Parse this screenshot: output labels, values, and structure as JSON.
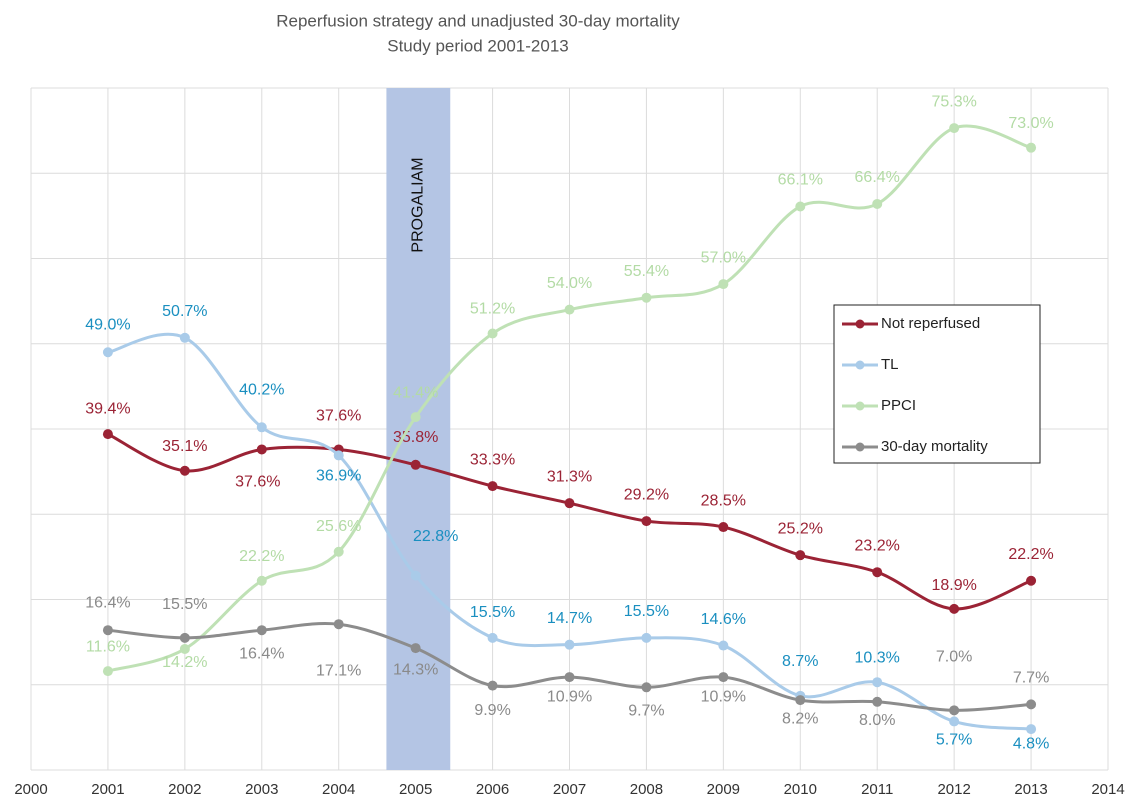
{
  "chart_data": {
    "type": "line",
    "title": "Reperfusion strategy and unadjusted 30-day mortality",
    "subtitle": "Study period 2001-2013",
    "x": [
      2001,
      2002,
      2003,
      2004,
      2005,
      2006,
      2007,
      2008,
      2009,
      2010,
      2011,
      2012,
      2013
    ],
    "xlim": [
      2000,
      2014
    ],
    "xticks": [
      2000,
      2001,
      2002,
      2003,
      2004,
      2005,
      2006,
      2007,
      2008,
      2009,
      2010,
      2011,
      2012,
      2013,
      2014
    ],
    "ylim": [
      0,
      80
    ],
    "yticks": [
      0,
      10,
      20,
      30,
      40,
      50,
      60,
      70,
      80
    ],
    "grid": true,
    "legend": "right",
    "annotation": {
      "text": "PROGALIAM",
      "color": "#b4c5e4",
      "x": [
        2004.62,
        2005.45
      ]
    },
    "series": [
      {
        "name": "Not reperfused",
        "color": "#9b2335",
        "label_color": "#9b2335",
        "values": [
          39.4,
          35.1,
          37.6,
          37.6,
          35.8,
          33.3,
          31.3,
          29.2,
          28.5,
          25.2,
          23.2,
          18.9,
          22.2
        ],
        "value_labels": [
          "39.4%",
          "35.1%",
          "37.6%",
          "37.6%",
          "35.8%",
          "33.3%",
          "31.3%",
          "29.2%",
          "28.5%",
          "25.2%",
          "23.2%",
          "18.9%",
          "22.2%"
        ]
      },
      {
        "name": "TL",
        "color": "#a9cbe9",
        "label_color": "#1a8fc0",
        "values": [
          49.0,
          50.7,
          40.2,
          36.9,
          22.8,
          15.5,
          14.7,
          15.5,
          14.6,
          8.7,
          10.3,
          5.7,
          4.8
        ],
        "value_labels": [
          "49.0%",
          "50.7%",
          "40.2%",
          "36.9%",
          "22.8%",
          "15.5%",
          "14.7%",
          "15.5%",
          "14.6%",
          "8.7%",
          "10.3%",
          "5.7%",
          "4.8%"
        ]
      },
      {
        "name": "PPCI",
        "color": "#bfe1b5",
        "label_color": "#b3dba5",
        "values": [
          11.6,
          14.2,
          22.2,
          25.6,
          41.4,
          51.2,
          54.0,
          55.4,
          57.0,
          66.1,
          66.4,
          75.3,
          73.0
        ],
        "value_labels": [
          "11.6%",
          "14.2%",
          "22.2%",
          "25.6%",
          "41.4%",
          "51.2%",
          "54.0%",
          "55.4%",
          "57.0%",
          "66.1%",
          "66.4%",
          "75.3%",
          "73.0%"
        ]
      },
      {
        "name": "30-day mortality",
        "color": "#8c8c8c",
        "label_color": "#8a8a8a",
        "values": [
          16.4,
          15.5,
          16.4,
          17.1,
          14.3,
          9.9,
          10.9,
          9.7,
          10.9,
          8.2,
          8.0,
          7.0,
          7.7
        ],
        "value_labels": [
          "16.4%",
          "15.5%",
          "16.4%",
          "17.1%",
          "14.3%",
          "9.9%",
          "10.9%",
          "9.7%",
          "10.9%",
          "8.2%",
          "8.0%",
          "7.0%",
          "7.7%"
        ]
      }
    ]
  }
}
